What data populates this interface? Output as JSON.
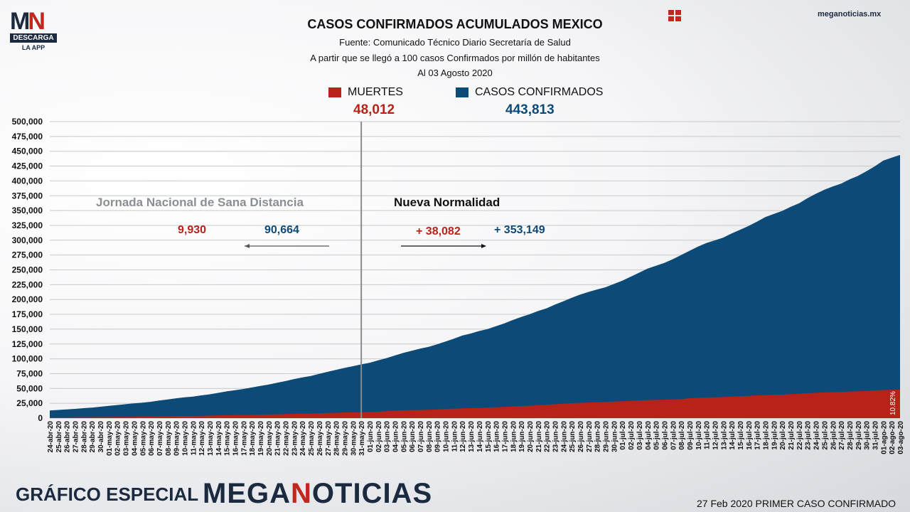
{
  "logo": {
    "brand_letters_1": "M",
    "brand_letters_2": "N",
    "download": "DESCARGA",
    "app": "LA APP"
  },
  "header": {
    "site": "meganoticias.mx",
    "grid_icon": "grid-icon"
  },
  "titles": {
    "main": "CASOS CONFIRMADOS ACUMULADOS MEXICO",
    "source": "Fuente: Comunicado Técnico Diario Secretaría de Salud",
    "note": "A partir que se llegó a 100 casos Confirmados por millón de habitantes",
    "date": "Al 03 Agosto 2020"
  },
  "legend": {
    "deaths_label": "MUERTES",
    "deaths_total": "48,012",
    "cases_label": "CASOS CONFIRMADOS",
    "cases_total": "443,813"
  },
  "periods": {
    "before_label": "Jornada Nacional de Sana Distancia",
    "before_deaths": "9,930",
    "before_cases": "90,664",
    "after_label": "Nueva Normalidad",
    "after_deaths": "+ 38,082",
    "after_cases": "+ 353,149"
  },
  "footer": {
    "left": "GRÁFICO ESPECIAL",
    "brand_1": "MEGA",
    "brand_2": "N",
    "brand_3": "OTICIAS",
    "right": "27 Feb 2020 PRIMER CASO CONFIRMADO"
  },
  "colors": {
    "deaths": "#b72318",
    "cases": "#0c4a78",
    "divider": "#8a8a8a"
  },
  "chart_data": {
    "type": "area",
    "ylim": [
      0,
      500000
    ],
    "yticks": [
      "0",
      "25,000",
      "50,000",
      "75,000",
      "100,000",
      "125,000",
      "150,000",
      "175,000",
      "200,000",
      "225,000",
      "250,000",
      "275,000",
      "300,000",
      "325,000",
      "350,000",
      "375,000",
      "400,000",
      "425,000",
      "450,000",
      "475,000",
      "500,000"
    ],
    "ytick_values": [
      0,
      25000,
      50000,
      75000,
      100000,
      125000,
      150000,
      175000,
      200000,
      225000,
      250000,
      275000,
      300000,
      325000,
      350000,
      375000,
      400000,
      425000,
      450000,
      475000,
      500000
    ],
    "x": [
      "24-abr-20",
      "25-abr-20",
      "26-abr-20",
      "27-abr-20",
      "28-abr-20",
      "29-abr-20",
      "30-abr-20",
      "01-may-20",
      "02-may-20",
      "03-may-20",
      "04-may-20",
      "05-may-20",
      "06-may-20",
      "07-may-20",
      "08-may-20",
      "09-may-20",
      "10-may-20",
      "11-may-20",
      "12-may-20",
      "13-may-20",
      "14-may-20",
      "15-may-20",
      "16-may-20",
      "17-may-20",
      "18-may-20",
      "19-may-20",
      "20-may-20",
      "21-may-20",
      "22-may-20",
      "23-may-20",
      "24-may-20",
      "25-may-20",
      "26-may-20",
      "27-may-20",
      "28-may-20",
      "29-may-20",
      "30-may-20",
      "31-may-20",
      "01-jun-20",
      "02-jun-20",
      "03-jun-20",
      "04-jun-20",
      "05-jun-20",
      "06-jun-20",
      "07-jun-20",
      "08-jun-20",
      "09-jun-20",
      "10-jun-20",
      "11-jun-20",
      "12-jun-20",
      "13-jun-20",
      "14-jun-20",
      "15-jun-20",
      "16-jun-20",
      "17-jun-20",
      "18-jun-20",
      "19-jun-20",
      "20-jun-20",
      "21-jun-20",
      "22-jun-20",
      "23-jun-20",
      "24-jun-20",
      "25-jun-20",
      "26-jun-20",
      "27-jun-20",
      "28-jun-20",
      "29-jun-20",
      "30-jun-20",
      "01-jul-20",
      "02-jul-20",
      "03-jul-20",
      "04-jul-20",
      "05-jul-20",
      "06-jul-20",
      "07-jul-20",
      "08-jul-20",
      "09-jul-20",
      "10-jul-20",
      "11-jul-20",
      "12-jul-20",
      "13-jul-20",
      "14-jul-20",
      "15-jul-20",
      "16-jul-20",
      "17-jul-20",
      "18-jul-20",
      "19-jul-20",
      "20-jul-20",
      "21-jul-20",
      "22-jul-20",
      "23-jul-20",
      "24-jul-20",
      "25-jul-20",
      "26-jul-20",
      "27-jul-20",
      "28-jul-20",
      "29-jul-20",
      "30-jul-20",
      "31-jul-20",
      "01-ago-20",
      "02-ago-20",
      "03-ago-20"
    ],
    "series": [
      {
        "name": "CASOS CONFIRMADOS",
        "values": [
          12872,
          13842,
          14677,
          15529,
          16752,
          17799,
          19224,
          20739,
          22088,
          23471,
          24905,
          26025,
          27634,
          29616,
          31522,
          33460,
          35022,
          36327,
          38324,
          40186,
          42595,
          45032,
          47144,
          49219,
          51633,
          54346,
          56594,
          59567,
          62527,
          65856,
          68620,
          71105,
          74560,
          78023,
          81400,
          84627,
          87512,
          90664,
          93435,
          97326,
          101238,
          105680,
          110026,
          113619,
          117103,
          120102,
          124301,
          129184,
          133974,
          139196,
          142690,
          146837,
          150264,
          154863,
          159793,
          165455,
          170485,
          175202,
          180545,
          185122,
          191410,
          196847,
          202951,
          208392,
          212802,
          216852,
          220657,
          226089,
          231770,
          238511,
          245251,
          252165,
          256848,
          261750,
          268008,
          275003,
          282283,
          289174,
          295268,
          299750,
          304435,
          311486,
          317635,
          324041,
          331298,
          338913,
          344224,
          349396,
          356255,
          362274,
          370712,
          378285,
          385036,
          390516,
          395489,
          402697,
          408449,
          416179,
          424637,
          434193,
          439046,
          443813
        ]
      },
      {
        "name": "MUERTES",
        "values": [
          1221,
          1305,
          1351,
          1434,
          1569,
          1732,
          1859,
          1972,
          2061,
          2154,
          2271,
          2507,
          2704,
          2961,
          3160,
          3353,
          3465,
          3573,
          3926,
          4220,
          4477,
          4767,
          5045,
          5177,
          5332,
          5666,
          6090,
          6510,
          6989,
          7179,
          7394,
          7633,
          8134,
          8597,
          9044,
          9415,
          9779,
          9930,
          10167,
          10637,
          11729,
          12545,
          13170,
          13511,
          13699,
          14053,
          14649,
          15357,
          15944,
          16448,
          16872,
          17141,
          17580,
          18310,
          19080,
          19747,
          20394,
          20781,
          21825,
          22584,
          23377,
          24324,
          25060,
          25779,
          26381,
          26648,
          27121,
          27769,
          28510,
          29189,
          29843,
          30366,
          30639,
          31119,
          31119,
          32014,
          33526,
          34191,
          34730,
          35006,
          35491,
          36327,
          36906,
          37574,
          38310,
          38888,
          39184,
          39485,
          40400,
          41190,
          41908,
          42645,
          43374,
          43680,
          44022,
          44876,
          45361,
          46000,
          46688,
          47472,
          47746,
          48012
        ]
      }
    ],
    "annotation_right": "10.82%",
    "divider_at": "31-may-20"
  }
}
